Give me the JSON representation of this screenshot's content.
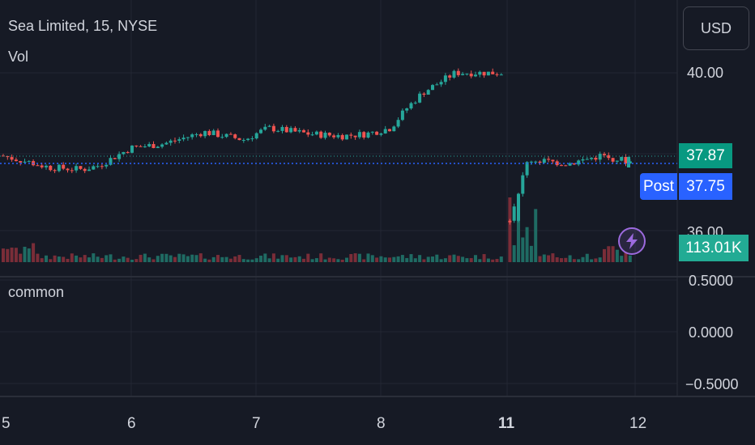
{
  "legend": {
    "symbol_line": "Sea Limited, 15, NYSE",
    "volume_label": "Vol"
  },
  "indicator": {
    "label": "common"
  },
  "currency": {
    "label": "USD"
  },
  "price_scale": {
    "ticks": [
      "40.00",
      "36.00"
    ],
    "indicator_ticks": [
      "0.5000",
      "0.0000",
      "−0.5000"
    ]
  },
  "badges": {
    "last_price": "37.87",
    "post_label": "Post",
    "post_price": "37.75",
    "volume": "113.01K"
  },
  "time_axis": {
    "labels": [
      "5",
      "6",
      "7",
      "8",
      "11",
      "12"
    ],
    "bold": [
      false,
      false,
      false,
      false,
      true,
      false
    ]
  },
  "colors": {
    "background": "#161a25",
    "up": "#26a69a",
    "down": "#ef5350",
    "post_blue": "#2962ff",
    "volume_up": "#1f6b63",
    "volume_down": "#7a2d38"
  },
  "icons": {
    "flash": "lightning-icon"
  },
  "chart_data": {
    "type": "candlestick",
    "y_range": [
      35.9,
      41.0
    ],
    "x_label_days": [
      "5",
      "6",
      "7",
      "8",
      "11",
      "12"
    ],
    "last_price": 37.87,
    "post_market_price": 37.75,
    "last_volume": "113.01K",
    "close_path": [
      {
        "day": "5",
        "close": 37.9
      },
      {
        "day": "5",
        "close": 37.6
      },
      {
        "day": "5",
        "close": 37.55
      },
      {
        "day": "5",
        "close": 37.65
      },
      {
        "day": "5",
        "close": 38.1
      },
      {
        "day": "6",
        "close": 38.2
      },
      {
        "day": "6",
        "close": 38.5
      },
      {
        "day": "6",
        "close": 38.3
      },
      {
        "day": "6",
        "close": 38.5
      },
      {
        "day": "6",
        "close": 38.6
      },
      {
        "day": "7",
        "close": 38.45
      },
      {
        "day": "7",
        "close": 38.4
      },
      {
        "day": "7",
        "close": 38.45
      },
      {
        "day": "7",
        "close": 38.6
      },
      {
        "day": "8",
        "close": 39.1
      },
      {
        "day": "8",
        "close": 39.5
      },
      {
        "day": "8",
        "close": 40.0
      },
      {
        "day": "8",
        "close": 40.0
      },
      {
        "day": "11",
        "close": 36.2
      },
      {
        "day": "11",
        "close": 37.8
      },
      {
        "day": "11",
        "close": 37.7
      },
      {
        "day": "11",
        "close": 37.9
      },
      {
        "day": "11",
        "close": 37.75
      }
    ],
    "indicator": {
      "name": "common",
      "ticks": [
        0.5,
        0.0,
        -0.5
      ],
      "values": []
    }
  }
}
